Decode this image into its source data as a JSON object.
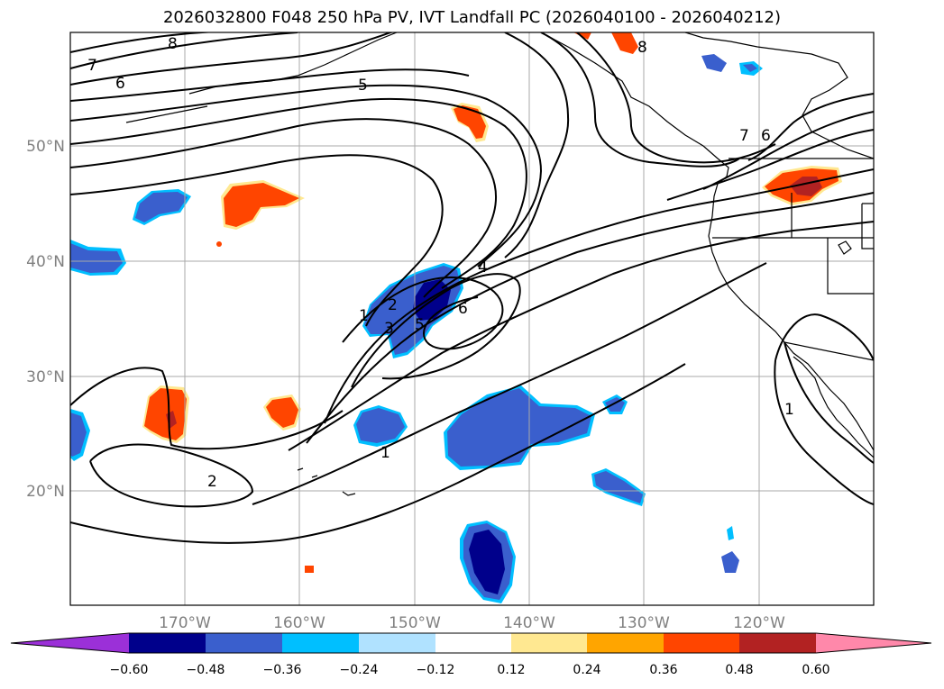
{
  "title": "2026032800 F048 250 hPa PV, IVT Landfall PC (2026040100 - 2026040212)",
  "map": {
    "lat_labels": [
      "50°N",
      "40°N",
      "30°N",
      "20°N"
    ],
    "lon_labels": [
      "170°W",
      "160°W",
      "150°W",
      "140°W",
      "130°W",
      "120°W"
    ],
    "contour_labels": [
      "8",
      "7",
      "6",
      "5",
      "6",
      "7",
      "8",
      "4",
      "6",
      "5",
      "3",
      "2",
      "1",
      "1",
      "2",
      "1"
    ]
  },
  "colorbar": {
    "colors": [
      "#9b30d8",
      "#00008b",
      "#3a5fcd",
      "#00bfff",
      "#b0e2ff",
      "#ffffff",
      "#ffe891",
      "#ffa500",
      "#ff4500",
      "#b22222",
      "#ff88aa"
    ],
    "tick_labels": [
      "−0.60",
      "−0.48",
      "−0.36",
      "−0.24",
      "−0.12",
      "0.12",
      "0.24",
      "0.36",
      "0.48",
      "0.60"
    ]
  },
  "colors": {
    "neg_deep": "#00008b",
    "neg_mid": "#3a5fcd",
    "neg_light": "#00bfff",
    "pos_light": "#ffe891",
    "pos_mid": "#ff4500",
    "pos_deep": "#b22222"
  }
}
